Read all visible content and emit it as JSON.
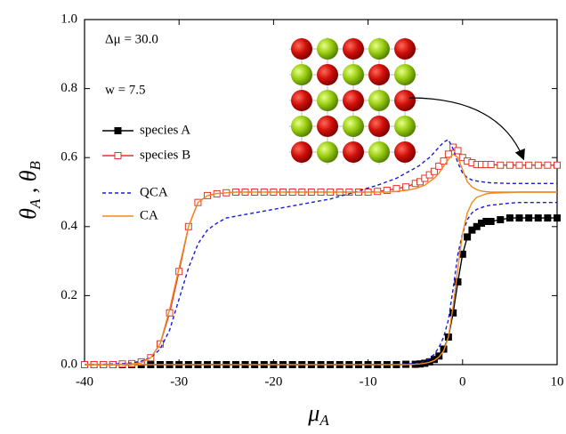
{
  "chart_data": {
    "type": "line",
    "annotations": [
      "Δμ = 30.0",
      "w = 7.5"
    ],
    "x_label": [
      "μ",
      "A"
    ],
    "y_label": [
      "θ",
      "A",
      " , ",
      "θ",
      "B"
    ],
    "x": [
      -40,
      -39,
      -38,
      -37,
      -36,
      -35,
      -34,
      -33,
      -32,
      -31,
      -30,
      -29,
      -28,
      -27,
      -26,
      -25,
      -24,
      -23,
      -22,
      -21,
      -20,
      -19,
      -18,
      -17,
      -16,
      -15,
      -14,
      -13,
      -12,
      -11,
      -10,
      -9,
      -8,
      -7,
      -6,
      -5,
      -4.5,
      -4,
      -3.5,
      -3,
      -2.5,
      -2,
      -1.5,
      -1,
      -0.5,
      0,
      0.5,
      1,
      1.5,
      2,
      2.5,
      3,
      4,
      5,
      6,
      7,
      8,
      9,
      10
    ],
    "series": [
      {
        "name": "species A",
        "color": "#000000",
        "marker": "filled-square",
        "values": [
          0,
          0,
          0,
          0,
          0,
          0,
          0,
          0,
          0,
          0,
          0,
          0,
          0,
          0,
          0,
          0,
          0,
          0,
          0,
          0,
          0,
          0,
          0,
          0,
          0,
          0,
          0,
          0,
          0,
          0,
          0,
          0,
          0,
          0,
          0.001,
          0.001,
          0.002,
          0.004,
          0.008,
          0.015,
          0.025,
          0.045,
          0.08,
          0.15,
          0.24,
          0.32,
          0.37,
          0.39,
          0.4,
          0.41,
          0.415,
          0.415,
          0.42,
          0.425,
          0.425,
          0.425,
          0.425,
          0.425,
          0.425
        ]
      },
      {
        "name": "species B",
        "color": "#e8312a",
        "marker": "open-square",
        "values": [
          0,
          0,
          0,
          0,
          0.002,
          0.003,
          0.008,
          0.02,
          0.06,
          0.15,
          0.27,
          0.4,
          0.47,
          0.49,
          0.495,
          0.498,
          0.5,
          0.5,
          0.5,
          0.5,
          0.5,
          0.5,
          0.5,
          0.5,
          0.5,
          0.5,
          0.5,
          0.5,
          0.5,
          0.5,
          0.5,
          0.502,
          0.505,
          0.51,
          0.515,
          0.525,
          0.53,
          0.54,
          0.55,
          0.56,
          0.575,
          0.59,
          0.61,
          0.63,
          0.62,
          0.6,
          0.59,
          0.585,
          0.58,
          0.58,
          0.58,
          0.58,
          0.578,
          0.578,
          0.578,
          0.578,
          0.578,
          0.578,
          0.578
        ]
      },
      {
        "name": "QCA",
        "color": "#1a1adb",
        "dash": true,
        "values": [
          0,
          0,
          0.001,
          0.002,
          0.003,
          0.005,
          0.01,
          0.02,
          0.045,
          0.1,
          0.19,
          0.28,
          0.35,
          0.39,
          0.41,
          0.425,
          0.43,
          0.435,
          0.44,
          0.445,
          0.45,
          0.455,
          0.46,
          0.465,
          0.47,
          0.475,
          0.48,
          0.488,
          0.495,
          0.503,
          0.512,
          0.52,
          0.53,
          0.54,
          0.555,
          0.57,
          0.578,
          0.59,
          0.6,
          0.615,
          0.63,
          0.645,
          0.652,
          0.625,
          0.585,
          0.555,
          0.542,
          0.535,
          0.532,
          0.53,
          0.528,
          0.527,
          0.526,
          0.525,
          0.525,
          0.525,
          0.525,
          0.525,
          0.525
        ]
      },
      {
        "name": null,
        "color": "#1a1adb",
        "dash": true,
        "values": [
          0,
          0,
          0,
          0,
          0,
          0,
          0,
          0,
          0,
          0,
          0,
          0,
          0,
          0,
          0,
          0,
          0,
          0,
          0,
          0,
          0,
          0,
          0,
          0,
          0,
          0,
          0,
          0,
          0,
          0,
          0,
          0,
          0,
          0.001,
          0.002,
          0.003,
          0.005,
          0.01,
          0.018,
          0.03,
          0.05,
          0.08,
          0.13,
          0.22,
          0.32,
          0.38,
          0.42,
          0.44,
          0.45,
          0.455,
          0.46,
          0.462,
          0.465,
          0.468,
          0.47,
          0.47,
          0.47,
          0.47,
          0.47
        ]
      },
      {
        "name": "CA",
        "color": "#f08a1c",
        "values": [
          0,
          0,
          0,
          0,
          0.001,
          0.002,
          0.005,
          0.02,
          0.06,
          0.16,
          0.28,
          0.4,
          0.47,
          0.49,
          0.496,
          0.498,
          0.5,
          0.5,
          0.5,
          0.5,
          0.5,
          0.5,
          0.5,
          0.5,
          0.5,
          0.5,
          0.5,
          0.5,
          0.5,
          0.5,
          0.5,
          0.5,
          0.5,
          0.502,
          0.505,
          0.51,
          0.515,
          0.52,
          0.53,
          0.54,
          0.555,
          0.575,
          0.595,
          0.61,
          0.6,
          0.565,
          0.53,
          0.515,
          0.507,
          0.503,
          0.501,
          0.5,
          0.5,
          0.5,
          0.5,
          0.5,
          0.5,
          0.5,
          0.5
        ]
      },
      {
        "name": null,
        "color": "#f08a1c",
        "values": [
          0,
          0,
          0,
          0,
          0,
          0,
          0,
          0,
          0,
          0,
          0,
          0,
          0,
          0,
          0,
          0,
          0,
          0,
          0,
          0,
          0,
          0,
          0,
          0,
          0,
          0,
          0,
          0,
          0,
          0,
          0,
          0,
          0,
          0,
          0,
          0.001,
          0.002,
          0.004,
          0.007,
          0.012,
          0.022,
          0.04,
          0.08,
          0.17,
          0.28,
          0.38,
          0.44,
          0.47,
          0.485,
          0.49,
          0.495,
          0.497,
          0.498,
          0.499,
          0.5,
          0.5,
          0.5,
          0.5,
          0.5
        ]
      }
    ],
    "xlim": [
      -40,
      10
    ],
    "xticks": [
      -40,
      -30,
      -20,
      -10,
      0,
      10
    ],
    "ylim": [
      0,
      1
    ],
    "yticks": [
      {
        "value": 0,
        "label": "0.0"
      },
      0.2,
      0.4,
      0.6,
      0.8,
      {
        "value": 1,
        "label": "1.0"
      }
    ]
  }
}
